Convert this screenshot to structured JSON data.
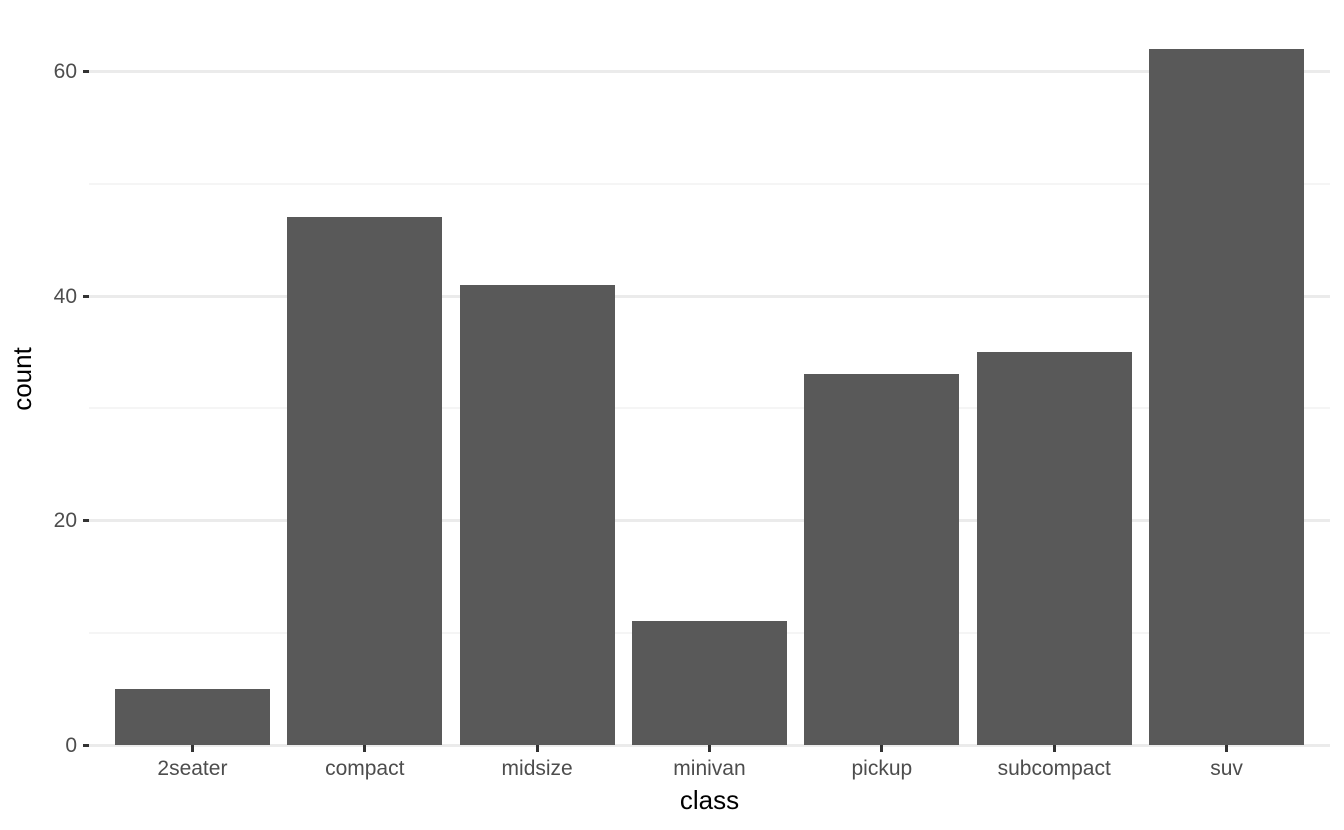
{
  "chart_data": {
    "type": "bar",
    "title": "",
    "xlabel": "class",
    "ylabel": "count",
    "categories": [
      "2seater",
      "compact",
      "midsize",
      "minivan",
      "pickup",
      "subcompact",
      "suv"
    ],
    "values": [
      5,
      47,
      41,
      11,
      33,
      35,
      62
    ],
    "y_axis": {
      "major_ticks": [
        0,
        20,
        40,
        60
      ],
      "minor_gridlines": [
        10,
        30,
        50
      ],
      "ylim": [
        0,
        65.1
      ]
    },
    "x_axis": {
      "tick_marks": true
    },
    "legend": "none",
    "grid": "horizontal major and minor gridlines",
    "colors": {
      "bar_fill": "#595959",
      "grid_major": "#EBEBEB",
      "grid_minor": "#F5F5F5",
      "tick_mark": "#333333",
      "tick_label": "#4D4D4D",
      "axis_title": "#000000",
      "background": "#FFFFFF"
    }
  }
}
